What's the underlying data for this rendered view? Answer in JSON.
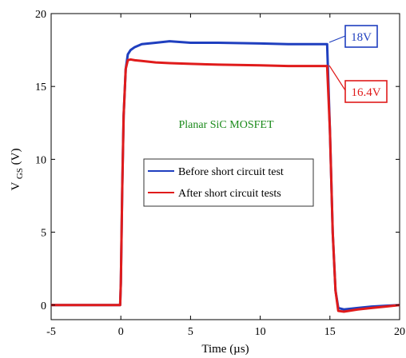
{
  "chart_data": {
    "type": "line",
    "xlabel": "Time (µs)",
    "ylabel_main": "V",
    "ylabel_sub": "GS",
    "ylabel_unit": " (V)",
    "xlim": [
      -5,
      20
    ],
    "ylim": [
      -1,
      20
    ],
    "xticks": [
      -5,
      0,
      5,
      10,
      15,
      20
    ],
    "yticks": [
      0,
      5,
      10,
      15,
      20
    ],
    "xtick_labels": [
      "-5",
      "0",
      "5",
      "10",
      "15",
      "20"
    ],
    "ytick_labels": [
      "0",
      "5",
      "10",
      "15",
      "20"
    ],
    "grid": false,
    "legend_position": "center",
    "series": [
      {
        "name": "Before short circuit test",
        "color": "#1f3fbf",
        "x": [
          -5,
          -0.05,
          0.0,
          0.1,
          0.2,
          0.35,
          0.5,
          0.7,
          1.0,
          1.5,
          2.5,
          3.5,
          5,
          7,
          10,
          12,
          14.8,
          15.0,
          15.2,
          15.4,
          15.6,
          16,
          17,
          18,
          19,
          20
        ],
        "y": [
          0,
          0,
          1.5,
          8.0,
          13.0,
          16.2,
          17.2,
          17.5,
          17.7,
          17.9,
          18.0,
          18.1,
          18.0,
          18.0,
          17.95,
          17.9,
          17.9,
          12.0,
          5.0,
          1.0,
          -0.2,
          -0.3,
          -0.2,
          -0.1,
          -0.05,
          0
        ]
      },
      {
        "name": "After short circuit tests",
        "color": "#e01b1b",
        "x": [
          -5,
          -0.05,
          0.0,
          0.1,
          0.2,
          0.35,
          0.5,
          0.7,
          1.0,
          1.5,
          2.5,
          3.5,
          5,
          7,
          10,
          12,
          14.8,
          15.0,
          15.2,
          15.4,
          15.6,
          16,
          17,
          18,
          19,
          20
        ],
        "y": [
          0,
          0,
          1.5,
          8.0,
          13.0,
          16.2,
          16.8,
          16.85,
          16.8,
          16.75,
          16.65,
          16.6,
          16.55,
          16.5,
          16.45,
          16.4,
          16.4,
          12.0,
          5.0,
          1.0,
          -0.4,
          -0.45,
          -0.3,
          -0.2,
          -0.1,
          0
        ]
      }
    ],
    "annotations": [
      {
        "text": "18V",
        "color": "#1f3fbf",
        "target_x": 15,
        "target_y": 17.9
      },
      {
        "text": "16.4V",
        "color": "#e01b1b",
        "target_x": 15,
        "target_y": 16.4
      }
    ],
    "device_label": {
      "text": "Planar SiC MOSFET",
      "color": "#1a8a1a"
    }
  }
}
